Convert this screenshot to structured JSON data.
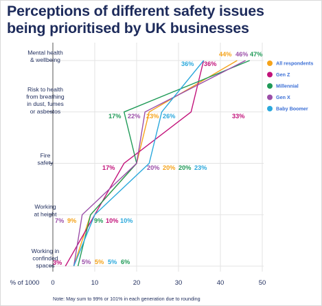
{
  "chart_data": {
    "type": "line",
    "title": "Perceptions of different safety issues being prioritised by UK businesses",
    "title_lines": [
      "Perceptions of different safety issues",
      "being prioritised by UK businesses"
    ],
    "xlabel": "% of 1000",
    "xlim": [
      0,
      50
    ],
    "x_ticks": [
      "0",
      "10",
      "20",
      "30",
      "40",
      "50"
    ],
    "categories": [
      "Mental health & wellbeing",
      "Risk to health from breathing in dust, fumes or asbestos",
      "Fire safety",
      "Working at height",
      "Working in confinded spaces"
    ],
    "category_lines": [
      [
        "Mental health",
        "& wellbeing"
      ],
      [
        "Risk to health",
        "from breathing",
        "in dust, fumes",
        "or asbestos"
      ],
      [
        "Fire",
        "safety"
      ],
      [
        "Working",
        "at height"
      ],
      [
        "Working in",
        "confinded",
        "spaces"
      ]
    ],
    "series": [
      {
        "name": "All respondents",
        "color": "#f5a31a",
        "values": [
          44,
          23,
          20,
          9,
          5
        ],
        "labels": [
          "44%",
          "23%",
          "20%",
          "9%",
          "5%"
        ]
      },
      {
        "name": "Gen Z",
        "color": "#c2127a",
        "values": [
          36,
          33,
          17,
          10,
          3
        ],
        "labels": [
          "36%",
          "33%",
          "17%",
          "10%",
          "3%"
        ]
      },
      {
        "name": "Millennial",
        "color": "#1f9a57",
        "values": [
          47,
          17,
          20,
          9,
          6
        ],
        "labels": [
          "47%",
          "17%",
          "20%",
          "9%",
          "6%"
        ]
      },
      {
        "name": "Gen X",
        "color": "#9b4ea8",
        "values": [
          46,
          22,
          20,
          7,
          5
        ],
        "labels": [
          "46%",
          "22%",
          "20%",
          "7%",
          "5%"
        ]
      },
      {
        "name": "Baby Boomer",
        "color": "#2aa8dc",
        "values": [
          36,
          26,
          23,
          10,
          5
        ],
        "labels": [
          "36%",
          "26%",
          "23%",
          "10%",
          "5%"
        ]
      }
    ],
    "grid": true,
    "legend_position": "right",
    "note": "Note: May sum to 99% or 101% in each generation due to rounding"
  }
}
